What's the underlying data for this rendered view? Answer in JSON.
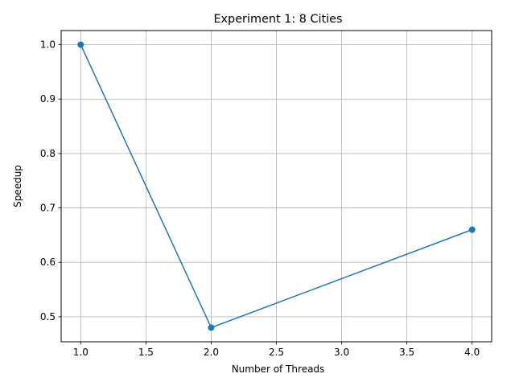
{
  "chart_data": {
    "type": "line",
    "title": "Experiment 1: 8 Cities",
    "xlabel": "Number of Threads",
    "ylabel": "Speedup",
    "x": [
      1,
      2,
      4
    ],
    "series": [
      {
        "values": [
          1.0,
          0.48,
          0.66
        ],
        "color": "#1f77b4",
        "marker": "circle"
      }
    ],
    "xlim": [
      0.85,
      4.15
    ],
    "ylim": [
      0.454,
      1.026
    ],
    "xticks": [
      1.0,
      1.5,
      2.0,
      2.5,
      3.0,
      3.5,
      4.0
    ],
    "xtick_labels": [
      "1.0",
      "1.5",
      "2.0",
      "2.5",
      "3.0",
      "3.5",
      "4.0"
    ],
    "yticks": [
      0.5,
      0.6,
      0.7,
      0.8,
      0.9,
      1.0
    ],
    "ytick_labels": [
      "0.5",
      "0.6",
      "0.7",
      "0.8",
      "0.9",
      "1.0"
    ],
    "grid": true,
    "grid_color": "#b0b0b0",
    "axis_color": "#000000"
  }
}
